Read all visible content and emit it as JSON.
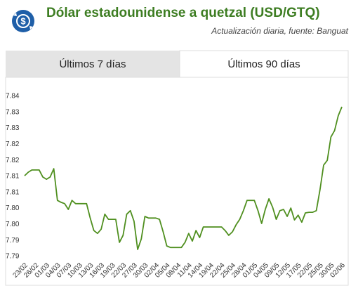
{
  "header": {
    "title": "Dólar estadounidense a quetzal (USD/GTQ)",
    "subtitle": "Actualización diaria, fuente: Banguat"
  },
  "tabs": [
    "Últimos 7 días",
    "Últimos 90 días"
  ],
  "chart_data": {
    "type": "line",
    "categories": [
      "23/02",
      null,
      null,
      "26/02",
      null,
      null,
      "01/03",
      null,
      null,
      "04/03",
      null,
      null,
      "07/03",
      null,
      null,
      "10/03",
      null,
      null,
      "13/03",
      null,
      null,
      "16/03",
      null,
      null,
      "19/03",
      null,
      null,
      "22/03",
      null,
      null,
      "27/03",
      null,
      null,
      "30/03",
      null,
      null,
      "02/04",
      null,
      null,
      "05/04",
      null,
      null,
      "08/04",
      null,
      null,
      "11/04",
      null,
      null,
      "14/04",
      null,
      null,
      "19/04",
      null,
      null,
      "22/04",
      null,
      null,
      "25/04",
      null,
      null,
      "28/04",
      null,
      null,
      "01/05",
      null,
      null,
      "04/05",
      null,
      null,
      "09/05",
      null,
      null,
      "12/05",
      null,
      null,
      "17/05",
      null,
      null,
      "22/05",
      null,
      null,
      "25/05",
      null,
      null,
      "30/05",
      null,
      null,
      "02/06"
    ],
    "series": [
      {
        "name": "USD/GTQ",
        "color": "#4f8f1f",
        "values": [
          7.8152,
          7.8163,
          7.817,
          7.817,
          7.817,
          7.8148,
          7.8141,
          7.8148,
          7.8174,
          7.8075,
          7.8069,
          7.8065,
          7.8047,
          7.8075,
          7.8065,
          7.8065,
          7.8065,
          7.8065,
          7.802,
          7.7981,
          7.7972,
          7.7985,
          7.8032,
          7.8016,
          7.8016,
          7.8016,
          7.7944,
          7.7966,
          7.8032,
          7.8043,
          7.801,
          7.7922,
          7.7955,
          7.8025,
          7.802,
          7.802,
          7.802,
          7.8016,
          7.7977,
          7.7933,
          7.7928,
          7.7928,
          7.7928,
          7.7928,
          7.7944,
          7.7972,
          7.7948,
          7.7981,
          7.7959,
          7.7992,
          7.7992,
          7.7992,
          7.7992,
          7.7992,
          7.7992,
          7.7981,
          7.7966,
          7.7977,
          7.7999,
          7.8016,
          7.8043,
          7.8075,
          7.8075,
          7.8075,
          7.8043,
          7.8003,
          7.8047,
          7.808,
          7.8054,
          7.8016,
          7.8043,
          7.8047,
          7.8025,
          7.8051,
          7.8014,
          7.8029,
          7.8007,
          7.8036,
          7.8038,
          7.8038,
          7.8043,
          7.8108,
          7.8185,
          7.82,
          7.8273,
          7.8293,
          7.8339,
          7.8367
        ]
      }
    ],
    "ylim": [
      7.79,
      7.84
    ],
    "yticks": [
      {
        "value": 7.84,
        "label": "7.84"
      },
      {
        "value": 7.835,
        "label": "7.83"
      },
      {
        "value": 7.83,
        "label": "7.83"
      },
      {
        "value": 7.825,
        "label": "7.82"
      },
      {
        "value": 7.82,
        "label": "7.82"
      },
      {
        "value": 7.815,
        "label": "7.81"
      },
      {
        "value": 7.81,
        "label": "7.81"
      },
      {
        "value": 7.805,
        "label": "7.80"
      },
      {
        "value": 7.8,
        "label": "7.80"
      },
      {
        "value": 7.795,
        "label": "7.79"
      },
      {
        "value": 7.79,
        "label": "7.79"
      }
    ],
    "grid": false
  }
}
